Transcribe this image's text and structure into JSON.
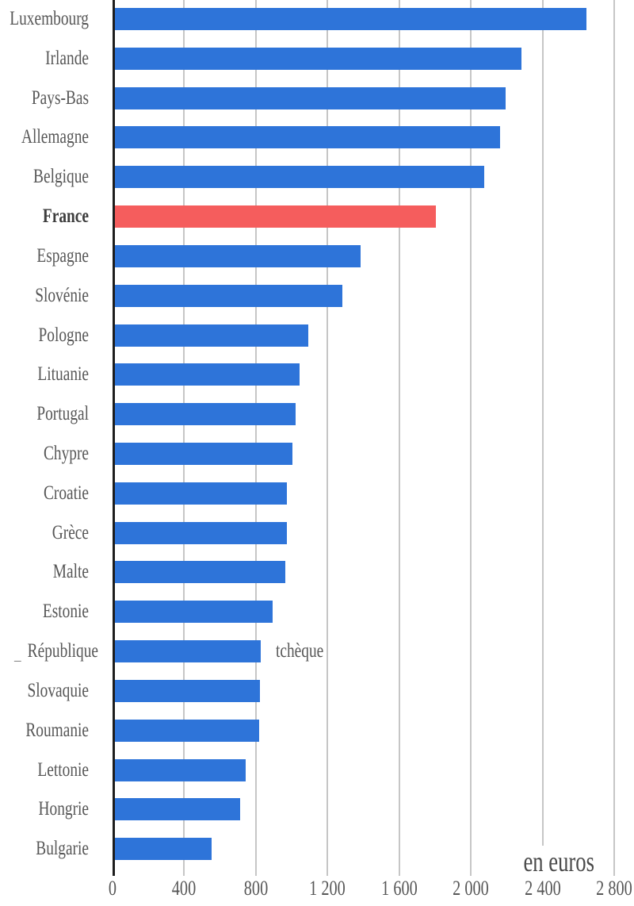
{
  "chart_data": {
    "type": "bar",
    "orientation": "horizontal",
    "title": "",
    "unit_label": "en euros",
    "categories": [
      "Luxembourg",
      "Irlande",
      "Pays-Bas",
      "Allemagne",
      "Belgique",
      "France",
      "Espagne",
      "Slovénie",
      "Pologne",
      "Lituanie",
      "Portugal",
      "Chypre",
      "Croatie",
      "Grèce",
      "Malte",
      "Estonie",
      "République tchèque",
      "Slovaquie",
      "Roumanie",
      "Lettonie",
      "Hongrie",
      "Bulgarie"
    ],
    "values": [
      2630,
      2270,
      2180,
      2150,
      2060,
      1790,
      1370,
      1270,
      1080,
      1030,
      1010,
      990,
      960,
      960,
      950,
      880,
      815,
      810,
      805,
      730,
      700,
      540
    ],
    "highlight_index": 5,
    "bar_color_default": "#2e74d9",
    "bar_color_highlight": "#f55d5d",
    "axis_line_color": "#1d1d1d",
    "gridline_color": "#c6c6c6",
    "xlim": [
      0,
      2800
    ],
    "x_ticks": [
      0,
      400,
      800,
      1200,
      1600,
      2000,
      2400,
      2800
    ],
    "x_tick_labels": [
      "0",
      "400",
      "800",
      "1 200",
      "1 600",
      "2 000",
      "2 400",
      "2 800"
    ],
    "grid": true,
    "legend": false,
    "wrapped_label": {
      "index": 16,
      "outside_part": "République",
      "inside_part": "tchèque",
      "stray_mark": "_"
    }
  }
}
